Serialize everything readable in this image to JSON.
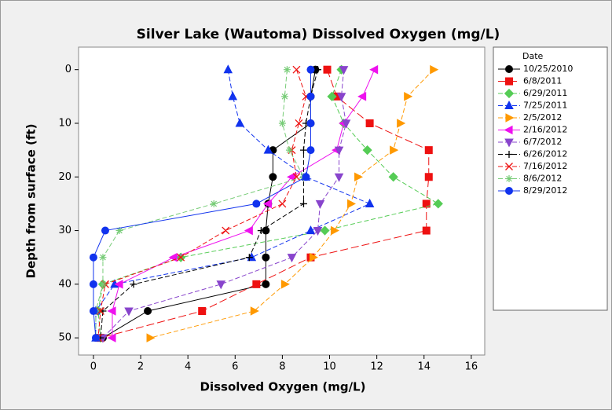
{
  "chart_data": {
    "type": "line",
    "title": "Silver Lake (Wautoma) Dissolved Oxygen (mg/L)",
    "x_label": "Dissolved Oxygen (mg/L)",
    "y_label": "Depth from surface (ft)",
    "legend_title": "Date",
    "depths": [
      0,
      5,
      10,
      15,
      20,
      25,
      30,
      35,
      40,
      45,
      50
    ],
    "xlim": [
      -0.63,
      16.57
    ],
    "ylim": [
      -4.2,
      53.2
    ],
    "y_inverted": true,
    "xticks": [
      0,
      2,
      4,
      6,
      8,
      10,
      12,
      14,
      16
    ],
    "yticks": [
      0,
      10,
      20,
      30,
      40,
      50
    ],
    "legend": "right",
    "series": [
      {
        "name": "10/25/2010",
        "color": "#000000",
        "marker": "circle",
        "dash": "solid",
        "values": [
          9.4,
          9.2,
          9.2,
          7.6,
          7.6,
          7.4,
          7.3,
          7.3,
          7.3,
          2.3,
          0.4
        ]
      },
      {
        "name": "6/8/2011",
        "color": "#ee1111",
        "marker": "square",
        "dash": "longdash",
        "values": [
          9.9,
          10.3,
          11.7,
          14.2,
          14.2,
          14.1,
          14.1,
          9.2,
          6.9,
          4.6,
          0.3
        ]
      },
      {
        "name": "6/29/2011",
        "color": "#55cc55",
        "marker": "diamond",
        "dash": "dash",
        "values": [
          10.5,
          10.1,
          10.6,
          11.6,
          12.7,
          14.6,
          9.8,
          3.7,
          0.4,
          0.2,
          0.3
        ]
      },
      {
        "name": "7/25/2011",
        "color": "#1133ee",
        "marker": "triangle",
        "dash": "dash",
        "values": [
          5.7,
          5.9,
          6.2,
          7.4,
          9.0,
          11.7,
          9.2,
          6.7,
          0.9,
          0.1,
          0.1
        ]
      },
      {
        "name": "2/5/2012",
        "color": "#ff9900",
        "marker": "triangle-right",
        "dash": "dash",
        "values": [
          14.4,
          13.3,
          13.0,
          12.7,
          11.2,
          10.9,
          10.2,
          9.3,
          8.1,
          6.8,
          2.4
        ]
      },
      {
        "name": "2/16/2012",
        "color": "#ee11ee",
        "marker": "triangle-left",
        "dash": "solid",
        "values": [
          11.9,
          11.4,
          10.6,
          10.3,
          8.4,
          7.4,
          6.6,
          3.4,
          1.1,
          0.8,
          0.8
        ]
      },
      {
        "name": "6/7/2012",
        "color": "#8844cc",
        "marker": "triangle-down",
        "dash": "dash",
        "values": [
          10.6,
          10.5,
          10.7,
          10.4,
          10.4,
          9.6,
          9.5,
          8.4,
          5.4,
          1.5,
          0.4
        ]
      },
      {
        "name": "6/26/2012",
        "color": "#000000",
        "marker": "plus",
        "dash": "dash",
        "values": [
          9.5,
          9.2,
          9.0,
          8.9,
          8.9,
          8.9,
          7.1,
          6.6,
          1.7,
          0.4,
          0.3
        ]
      },
      {
        "name": "7/16/2012",
        "color": "#ee1111",
        "marker": "cross",
        "dash": "dash",
        "values": [
          8.6,
          9.0,
          8.7,
          8.4,
          8.6,
          8.0,
          5.6,
          3.7,
          0.5,
          0.3,
          0.2
        ]
      },
      {
        "name": "8/6/2012",
        "color": "#77cc77",
        "marker": "asterisk",
        "dash": "dash",
        "values": [
          8.2,
          8.1,
          8.0,
          8.3,
          8.9,
          5.1,
          1.1,
          0.4,
          0.4,
          0.1,
          0.1
        ]
      },
      {
        "name": "8/29/2012",
        "color": "#1133ee",
        "marker": "circle",
        "dash": "solid",
        "values": [
          9.2,
          9.2,
          9.2,
          9.2,
          9.0,
          6.9,
          0.5,
          0.0,
          0.0,
          0.0,
          0.1
        ]
      }
    ]
  }
}
